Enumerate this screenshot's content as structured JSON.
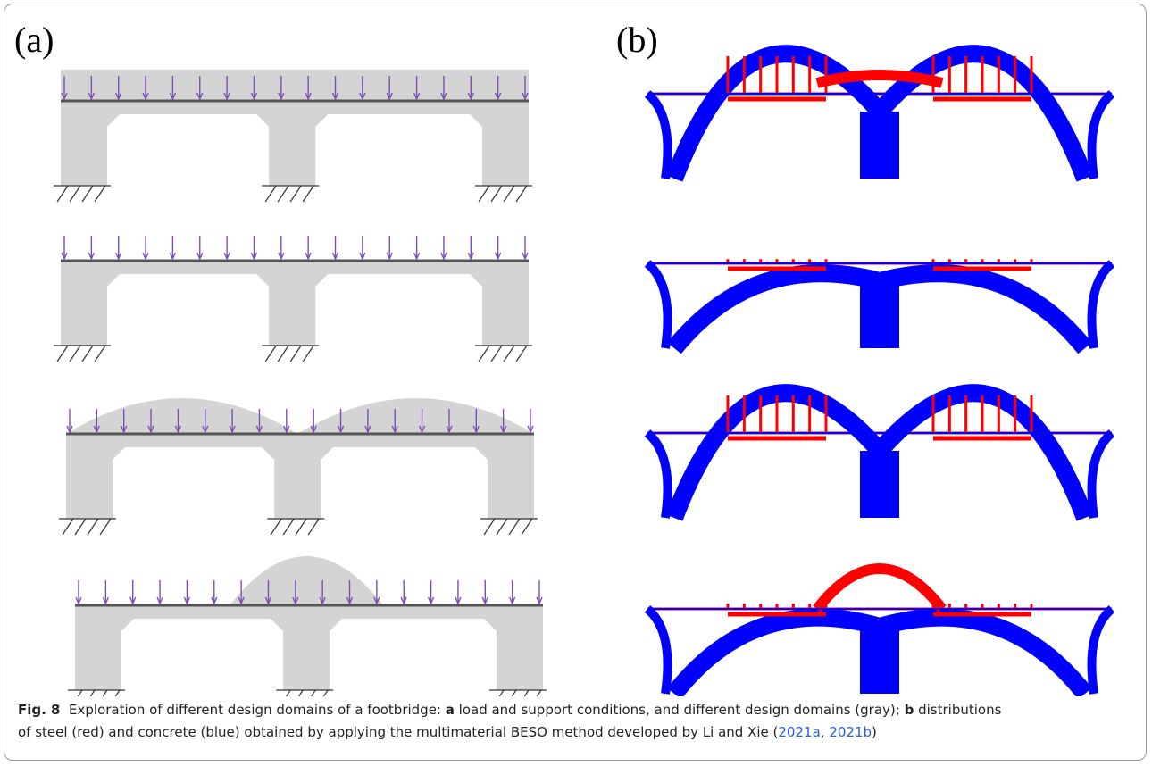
{
  "panels": [
    {
      "label": "(a)"
    },
    {
      "label": "(b)"
    }
  ],
  "caption": {
    "figure": "Fig. 8",
    "parts": [
      "Exploration of different design domains of a footbridge: ",
      "a",
      " load and support conditions, and different design domains (gray); ",
      "b",
      " distributions",
      "of steel (red) and concrete (blue) obtained by applying the multimaterial BESO method developed by Li and Xie (",
      "2021a",
      ", ",
      "2021b",
      ")"
    ]
  }
}
